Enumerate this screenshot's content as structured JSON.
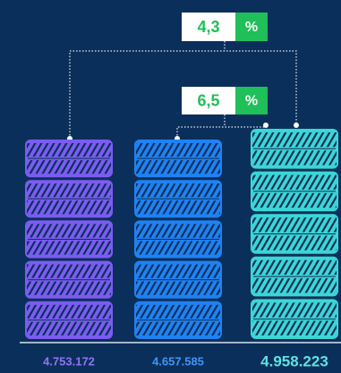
{
  "bars": [
    {
      "label": "4.753.172",
      "color": "#7b5cf0",
      "label_color": "#8f74f5"
    },
    {
      "label": "4.657.585",
      "color": "#1f82f2",
      "label_color": "#3e95f2"
    },
    {
      "label": "4.958.223",
      "color": "#3cd6d4",
      "label_color": "#5fe3e0"
    }
  ],
  "annotations": [
    {
      "value": "4,3",
      "unit": "%"
    },
    {
      "value": "6,5",
      "unit": "%"
    }
  ],
  "accent_color": "#1fbf5a"
}
